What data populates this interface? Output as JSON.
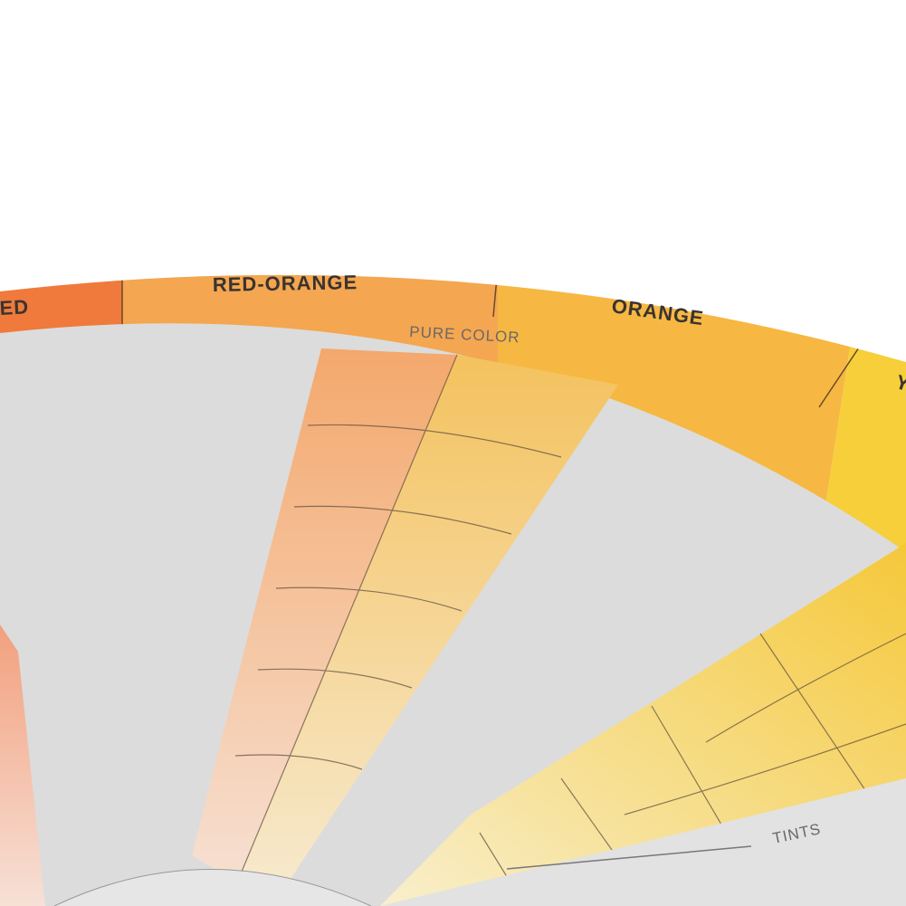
{
  "wheel": {
    "bands": [
      "ED",
      "RED-ORANGE",
      "ORANGE",
      "Y"
    ],
    "window_label": "PURE COLOR",
    "bottom_label": "TINTS"
  }
}
